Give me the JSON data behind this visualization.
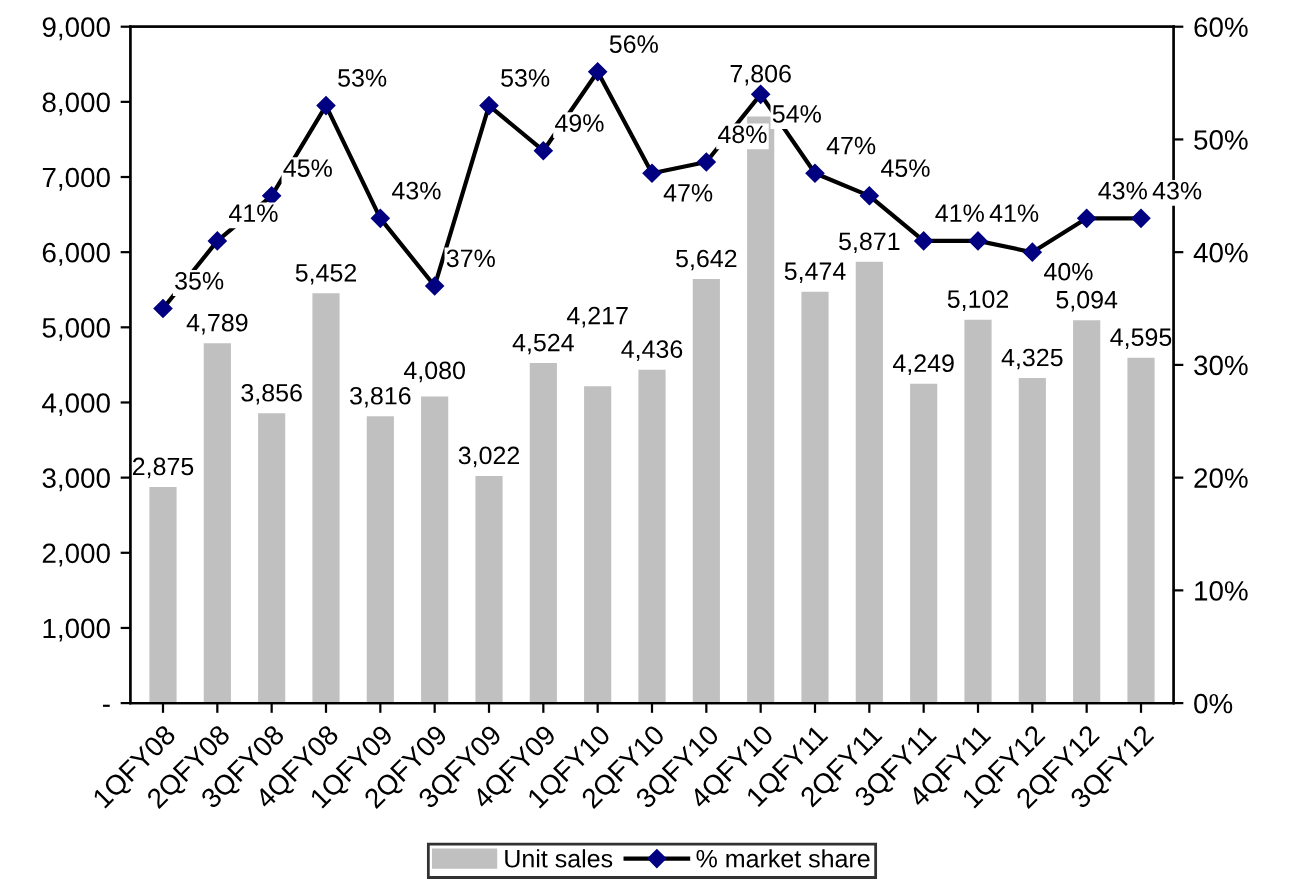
{
  "chart_data": {
    "type": "bar",
    "categories": [
      "1QFY08",
      "2QFY08",
      "3QFY08",
      "4QFY08",
      "1QFY09",
      "2QFY09",
      "3QFY09",
      "4QFY09",
      "1QFY10",
      "2QFY10",
      "3QFY10",
      "4QFY10",
      "1QFY11",
      "2QFY11",
      "3QFY11",
      "4QFY11",
      "1QFY12",
      "2QFY12",
      "3QFY12"
    ],
    "series": [
      {
        "name": "Unit sales",
        "type": "bar",
        "color": "#c0c0c0",
        "values": [
          2875,
          4789,
          3856,
          5452,
          3816,
          4080,
          3022,
          4524,
          4217,
          4436,
          5642,
          7806,
          5474,
          5871,
          4249,
          5102,
          4325,
          5094,
          4595
        ],
        "value_labels": [
          "2,875",
          "4,789",
          "3,856",
          "5,452",
          "3,816",
          "4,080",
          "3,022",
          "4,524",
          "4,217",
          "4,436",
          "5,642",
          "7,806",
          "5,474",
          "5,871",
          "4,249",
          "5,102",
          "4,325",
          "5,094",
          "4,595"
        ]
      },
      {
        "name": "% market share",
        "type": "line",
        "axis": "y2",
        "color": "#000080",
        "marker": "diamond",
        "values": [
          35,
          41,
          45,
          53,
          43,
          37,
          53,
          49,
          56,
          47,
          48,
          54,
          47,
          45,
          41,
          41,
          40,
          43,
          43
        ],
        "value_labels": [
          "35%",
          "41%",
          "45%",
          "53%",
          "43%",
          "37%",
          "53%",
          "49%",
          "56%",
          "47%",
          "48%",
          "54%",
          "47%",
          "45%",
          "41%",
          "41%",
          "40%",
          "43%",
          "43%"
        ]
      }
    ],
    "ylim": [
      0,
      9000
    ],
    "yticks": [
      {
        "value": 0,
        "label": "-"
      },
      {
        "value": 1000,
        "label": "1,000"
      },
      {
        "value": 2000,
        "label": "2,000"
      },
      {
        "value": 3000,
        "label": "3,000"
      },
      {
        "value": 4000,
        "label": "4,000"
      },
      {
        "value": 5000,
        "label": "5,000"
      },
      {
        "value": 6000,
        "label": "6,000"
      },
      {
        "value": 7000,
        "label": "7,000"
      },
      {
        "value": 8000,
        "label": "8,000"
      },
      {
        "value": 9000,
        "label": "9,000"
      }
    ],
    "y2lim": [
      0,
      60
    ],
    "y2ticks": [
      {
        "value": 0,
        "label": "0%"
      },
      {
        "value": 10,
        "label": "10%"
      },
      {
        "value": 20,
        "label": "20%"
      },
      {
        "value": 30,
        "label": "30%"
      },
      {
        "value": 40,
        "label": "40%"
      },
      {
        "value": 50,
        "label": "50%"
      },
      {
        "value": 60,
        "label": "60%"
      }
    ],
    "legend": "bottom",
    "grid": false
  }
}
